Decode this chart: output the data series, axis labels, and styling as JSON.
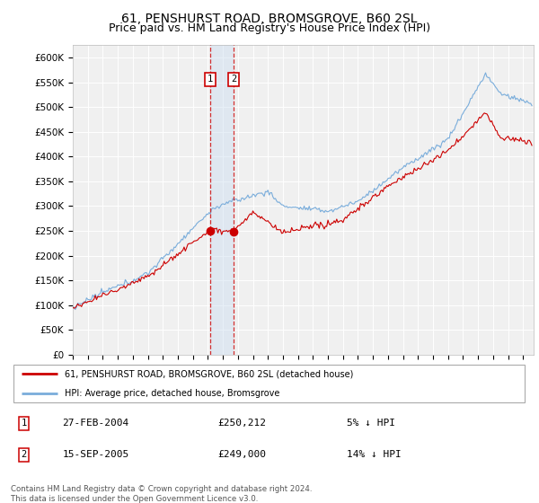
{
  "title": "61, PENSHURST ROAD, BROMSGROVE, B60 2SL",
  "subtitle": "Price paid vs. HM Land Registry's House Price Index (HPI)",
  "ylim": [
    0,
    625000
  ],
  "yticks": [
    0,
    50000,
    100000,
    150000,
    200000,
    250000,
    300000,
    350000,
    400000,
    450000,
    500000,
    550000,
    600000
  ],
  "ytick_labels": [
    "£0",
    "£50K",
    "£100K",
    "£150K",
    "£200K",
    "£250K",
    "£300K",
    "£350K",
    "£400K",
    "£450K",
    "£500K",
    "£550K",
    "£600K"
  ],
  "transactions": [
    {
      "id": 1,
      "date": "27-FEB-2004",
      "date_num": 2004.15,
      "price": 250212,
      "label": "5% ↓ HPI"
    },
    {
      "id": 2,
      "date": "15-SEP-2005",
      "date_num": 2005.71,
      "price": 249000,
      "label": "14% ↓ HPI"
    }
  ],
  "legend_line1": "61, PENSHURST ROAD, BROMSGROVE, B60 2SL (detached house)",
  "legend_line2": "HPI: Average price, detached house, Bromsgrove",
  "footnote": "Contains HM Land Registry data © Crown copyright and database right 2024.\nThis data is licensed under the Open Government Licence v3.0.",
  "line_color_red": "#cc0000",
  "line_color_blue": "#7aaddb",
  "shade_color": "#ccddf0",
  "background_color": "#ffffff",
  "plot_bg_color": "#f0f0f0",
  "grid_color": "#ffffff",
  "title_fontsize": 10,
  "subtitle_fontsize": 9,
  "tick_fontsize": 7.5
}
